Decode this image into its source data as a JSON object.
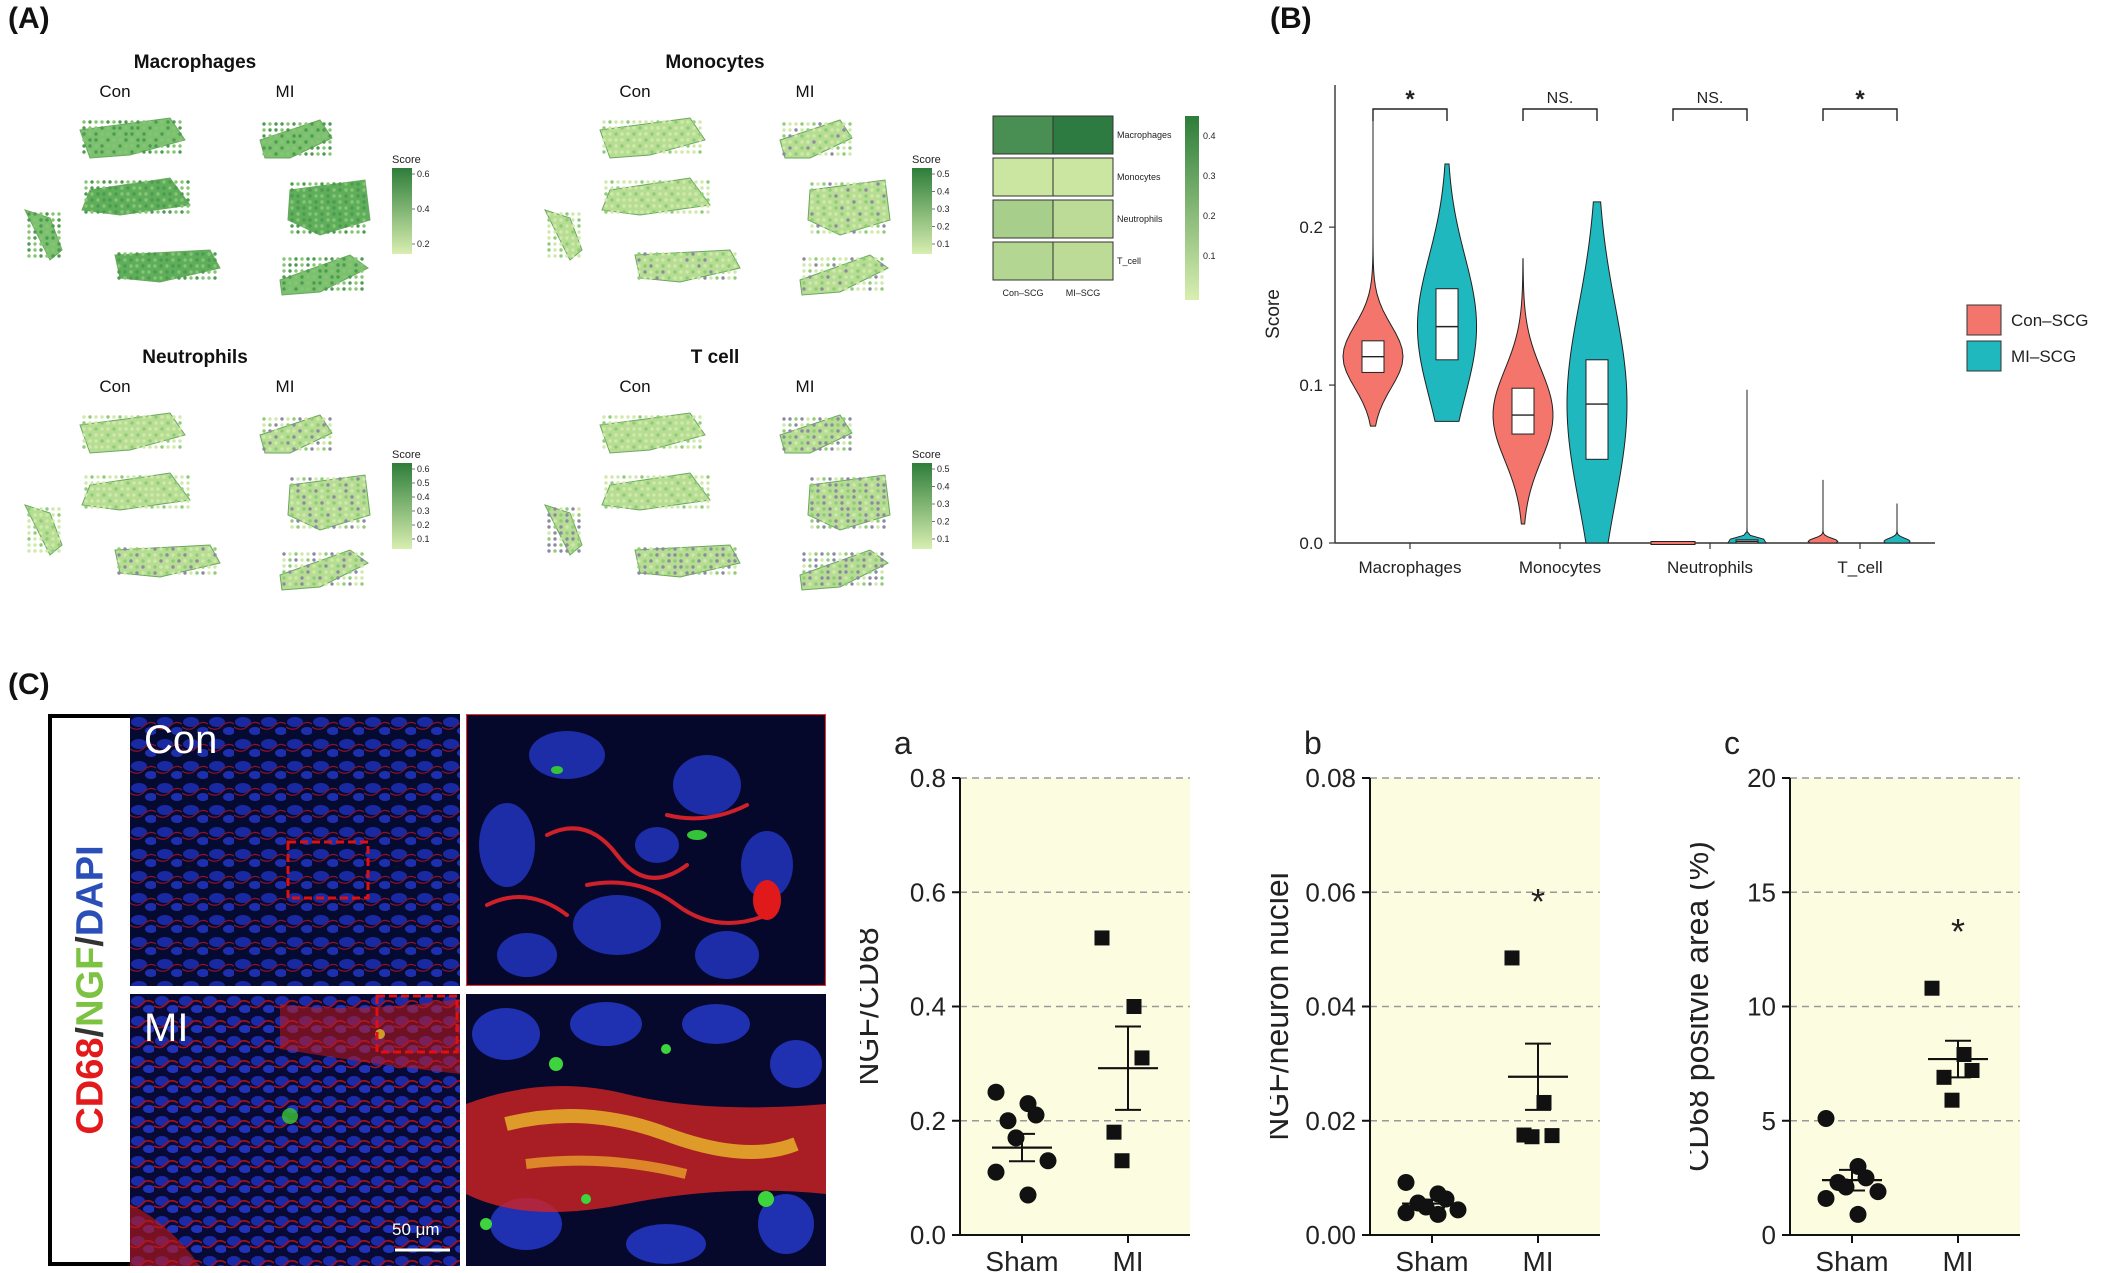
{
  "panels": {
    "A": "(A)",
    "B": "(B)",
    "C": "(C)"
  },
  "panelA": {
    "spatial": [
      {
        "title": "Macrophages",
        "con": "Con",
        "mi": "MI",
        "legend_title": "Score",
        "ticks": [
          "0.6",
          "0.4",
          "0.2"
        ],
        "dark": "#2e7d3a",
        "light": "#d8efb0"
      },
      {
        "title": "Monocytes",
        "con": "Con",
        "mi": "MI",
        "legend_title": "Score",
        "ticks": [
          "0.5",
          "0.4",
          "0.3",
          "0.2",
          "0.1"
        ],
        "dark": "#2e7d3a",
        "light": "#d8efb0"
      },
      {
        "title": "Neutrophils",
        "con": "Con",
        "mi": "MI",
        "legend_title": "Score",
        "ticks": [
          "0.6",
          "0.5",
          "0.4",
          "0.3",
          "0.2",
          "0.1"
        ],
        "dark": "#2e7d3a",
        "light": "#d8efb0"
      },
      {
        "title": "T cell",
        "con": "Con",
        "mi": "MI",
        "legend_title": "Score",
        "ticks": [
          "0.5",
          "0.4",
          "0.3",
          "0.2",
          "0.1"
        ],
        "dark": "#2e7d3a",
        "light": "#d8efb0"
      }
    ],
    "heatmap": {
      "rows": [
        "Macrophages",
        "Monocytes",
        "Neutrophils",
        "T_cell"
      ],
      "cols": [
        "Con–SCG",
        "MI–SCG"
      ],
      "values": [
        [
          0.36,
          0.43
        ],
        [
          0.03,
          0.03
        ],
        [
          0.12,
          0.07
        ],
        [
          0.09,
          0.07
        ]
      ],
      "ticks": [
        "0.4",
        "0.3",
        "0.2",
        "0.1"
      ]
    }
  },
  "chart_data": [
    {
      "type": "violin",
      "panel": "B",
      "ylabel": "Score",
      "categories": [
        "Macrophages",
        "Monocytes",
        "Neutrophils",
        "T_cell"
      ],
      "yticks": [
        "0.0",
        "0.1",
        "0.2"
      ],
      "ylim": [
        0,
        0.29
      ],
      "series": [
        {
          "name": "Con–SCG",
          "color": "#f4756b",
          "median": [
            0.118,
            0.081,
            0.001,
            0.001
          ],
          "q1": [
            0.108,
            0.069,
            0.0,
            0.0
          ],
          "q3": [
            0.128,
            0.098,
            0.002,
            0.002
          ],
          "min": [
            0.074,
            0.012,
            0.0,
            0.0
          ],
          "max": [
            0.27,
            0.18,
            0.002,
            0.04
          ]
        },
        {
          "name": "MI–SCG",
          "color": "#1fb8be",
          "median": [
            0.137,
            0.088,
            0.001,
            0.001
          ],
          "q1": [
            0.116,
            0.053,
            0.0,
            0.0
          ],
          "q3": [
            0.161,
            0.116,
            0.002,
            0.002
          ],
          "min": [
            0.077,
            0.0,
            0.0,
            0.0
          ],
          "max": [
            0.24,
            0.216,
            0.097,
            0.025
          ]
        }
      ],
      "significance": [
        "*",
        "NS.",
        "NS.",
        "*"
      ],
      "legend_position": "right"
    },
    {
      "type": "scatter",
      "panel": "a",
      "label": "a",
      "ylabel": "NGF/CD68",
      "categories": [
        "Sham",
        "MI"
      ],
      "yticks": [
        "0.0",
        "0.2",
        "0.4",
        "0.6",
        "0.8"
      ],
      "ylim": [
        0,
        0.8
      ],
      "points": [
        [
          0.25,
          0.23,
          0.21,
          0.2,
          0.17,
          0.13,
          0.11,
          0.07
        ],
        [
          0.52,
          0.4,
          0.31,
          0.18,
          0.13
        ]
      ],
      "mean": [
        0.153,
        0.292
      ],
      "sem": [
        0.024,
        0.073
      ],
      "significance": [
        "",
        ""
      ]
    },
    {
      "type": "scatter",
      "panel": "b",
      "label": "b",
      "ylabel": "NGF/neuron nuclei",
      "categories": [
        "Sham",
        "MI"
      ],
      "yticks": [
        "0.00",
        "0.02",
        "0.04",
        "0.06",
        "0.08"
      ],
      "ylim": [
        0,
        0.08
      ],
      "points": [
        [
          0.0092,
          0.0072,
          0.0063,
          0.0056,
          0.0049,
          0.0044,
          0.0039,
          0.0036
        ],
        [
          0.0485,
          0.0232,
          0.0174,
          0.0175,
          0.0172
        ]
      ],
      "mean": [
        0.0055,
        0.0277
      ],
      "sem": [
        0.0007,
        0.0058
      ],
      "significance": [
        "",
        "*"
      ]
    },
    {
      "type": "scatter",
      "panel": "c",
      "label": "c",
      "ylabel": "CD68 positvie area (%)",
      "categories": [
        "Sham",
        "MI"
      ],
      "yticks": [
        "0",
        "5",
        "10",
        "15",
        "20"
      ],
      "ylim": [
        0,
        20
      ],
      "points": [
        [
          5.1,
          3.0,
          2.5,
          2.3,
          2.1,
          1.9,
          1.6,
          0.9
        ],
        [
          10.8,
          7.9,
          7.2,
          6.9,
          5.9
        ]
      ],
      "mean": [
        2.4,
        7.7
      ],
      "sem": [
        0.45,
        0.8
      ],
      "significance": [
        "",
        "*"
      ]
    }
  ],
  "panelC": {
    "stain_label": {
      "red": "CD68",
      "slash1": "/",
      "green": "NGF",
      "slash2": "/",
      "blue": "DAPI"
    },
    "con_label": "Con",
    "mi_label": "MI",
    "scale_bar": "50 μm"
  }
}
